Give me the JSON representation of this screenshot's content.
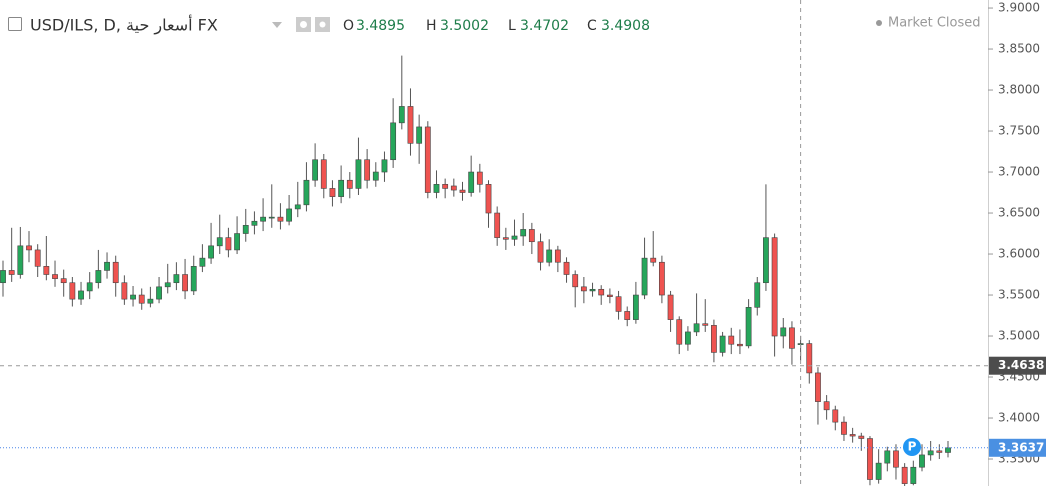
{
  "chart_data": {
    "type": "candlestick",
    "symbol": "USD/ILS, D, أسعار حية FX",
    "ohlc_labels": [
      "O",
      "H",
      "L",
      "C"
    ],
    "status": "Market Closed",
    "marker_label": "P",
    "up_color": "#26a65b",
    "down_color": "#ef5350",
    "grid": false,
    "crosshair_price": 3.4638,
    "ylim": [
      3.3171,
      3.9098
    ],
    "yticks": [
      {
        "value": 3.35,
        "label": "3.3500"
      },
      {
        "value": 3.4,
        "label": "3.4000"
      },
      {
        "value": 3.45,
        "label": "3.4500"
      },
      {
        "value": 3.5,
        "label": "3.5000"
      },
      {
        "value": 3.55,
        "label": "3.5500"
      },
      {
        "value": 3.6,
        "label": "3.6000"
      },
      {
        "value": 3.65,
        "label": "3.6500"
      },
      {
        "value": 3.7,
        "label": "3.7000"
      },
      {
        "value": 3.75,
        "label": "3.7500"
      },
      {
        "value": 3.8,
        "label": "3.8000"
      },
      {
        "value": 3.85,
        "label": "3.8500"
      },
      {
        "value": 3.9,
        "label": "3.9000"
      }
    ],
    "candles": [
      [
        3.565,
        3.592,
        3.548,
        3.58
      ],
      [
        3.58,
        3.632,
        3.566,
        3.575
      ],
      [
        3.575,
        3.633,
        3.57,
        3.61
      ],
      [
        3.61,
        3.628,
        3.59,
        3.605
      ],
      [
        3.605,
        3.612,
        3.572,
        3.585
      ],
      [
        3.585,
        3.622,
        3.568,
        3.575
      ],
      [
        3.575,
        3.592,
        3.56,
        3.57
      ],
      [
        3.57,
        3.581,
        3.548,
        3.565
      ],
      [
        3.565,
        3.572,
        3.536,
        3.545
      ],
      [
        3.545,
        3.566,
        3.538,
        3.555
      ],
      [
        3.555,
        3.578,
        3.545,
        3.565
      ],
      [
        3.565,
        3.605,
        3.558,
        3.58
      ],
      [
        3.58,
        3.602,
        3.57,
        3.59
      ],
      [
        3.59,
        3.598,
        3.548,
        3.565
      ],
      [
        3.565,
        3.574,
        3.538,
        3.545
      ],
      [
        3.545,
        3.561,
        3.536,
        3.55
      ],
      [
        3.55,
        3.558,
        3.532,
        3.54
      ],
      [
        3.54,
        3.56,
        3.535,
        3.545
      ],
      [
        3.545,
        3.572,
        3.54,
        3.56
      ],
      [
        3.56,
        3.588,
        3.552,
        3.565
      ],
      [
        3.565,
        3.59,
        3.556,
        3.575
      ],
      [
        3.575,
        3.594,
        3.545,
        3.555
      ],
      [
        3.555,
        3.598,
        3.55,
        3.585
      ],
      [
        3.585,
        3.612,
        3.578,
        3.595
      ],
      [
        3.595,
        3.638,
        3.588,
        3.61
      ],
      [
        3.61,
        3.648,
        3.6,
        3.62
      ],
      [
        3.62,
        3.632,
        3.596,
        3.605
      ],
      [
        3.605,
        3.646,
        3.6,
        3.625
      ],
      [
        3.625,
        3.655,
        3.615,
        3.635
      ],
      [
        3.635,
        3.652,
        3.624,
        3.64
      ],
      [
        3.64,
        3.668,
        3.628,
        3.645
      ],
      [
        3.645,
        3.685,
        3.632,
        3.645
      ],
      [
        3.645,
        3.662,
        3.63,
        3.64
      ],
      [
        3.64,
        3.672,
        3.635,
        3.655
      ],
      [
        3.655,
        3.688,
        3.645,
        3.66
      ],
      [
        3.66,
        3.712,
        3.652,
        3.69
      ],
      [
        3.69,
        3.735,
        3.682,
        3.715
      ],
      [
        3.715,
        3.722,
        3.668,
        3.68
      ],
      [
        3.68,
        3.69,
        3.658,
        3.67
      ],
      [
        3.67,
        3.708,
        3.662,
        3.69
      ],
      [
        3.69,
        3.7,
        3.668,
        3.68
      ],
      [
        3.68,
        3.742,
        3.672,
        3.715
      ],
      [
        3.715,
        3.728,
        3.68,
        3.69
      ],
      [
        3.69,
        3.712,
        3.682,
        3.7
      ],
      [
        3.7,
        3.725,
        3.688,
        3.715
      ],
      [
        3.715,
        3.79,
        3.705,
        3.76
      ],
      [
        3.76,
        3.842,
        3.752,
        3.78
      ],
      [
        3.78,
        3.802,
        3.72,
        3.735
      ],
      [
        3.735,
        3.77,
        3.71,
        3.755
      ],
      [
        3.755,
        3.762,
        3.668,
        3.675
      ],
      [
        3.675,
        3.702,
        3.668,
        3.685
      ],
      [
        3.685,
        3.692,
        3.668,
        3.68
      ],
      [
        3.683,
        3.692,
        3.67,
        3.678
      ],
      [
        3.678,
        3.688,
        3.665,
        3.675
      ],
      [
        3.675,
        3.72,
        3.67,
        3.7
      ],
      [
        3.7,
        3.71,
        3.675,
        3.685
      ],
      [
        3.685,
        3.69,
        3.632,
        3.65
      ],
      [
        3.65,
        3.658,
        3.61,
        3.62
      ],
      [
        3.62,
        3.632,
        3.605,
        3.618
      ],
      [
        3.618,
        3.642,
        3.61,
        3.622
      ],
      [
        3.622,
        3.65,
        3.61,
        3.63
      ],
      [
        3.63,
        3.638,
        3.6,
        3.615
      ],
      [
        3.615,
        3.625,
        3.58,
        3.59
      ],
      [
        3.59,
        3.618,
        3.585,
        3.605
      ],
      [
        3.605,
        3.61,
        3.578,
        3.59
      ],
      [
        3.59,
        3.596,
        3.565,
        3.575
      ],
      [
        3.575,
        3.58,
        3.535,
        3.56
      ],
      [
        3.56,
        3.572,
        3.54,
        3.555
      ],
      [
        3.555,
        3.565,
        3.548,
        3.557
      ],
      [
        3.557,
        3.562,
        3.538,
        3.55
      ],
      [
        3.55,
        3.558,
        3.54,
        3.548
      ],
      [
        3.548,
        3.555,
        3.52,
        3.53
      ],
      [
        3.53,
        3.536,
        3.512,
        3.52
      ],
      [
        3.52,
        3.566,
        3.515,
        3.55
      ],
      [
        3.55,
        3.62,
        3.545,
        3.595
      ],
      [
        3.595,
        3.628,
        3.585,
        3.59
      ],
      [
        3.59,
        3.598,
        3.54,
        3.55
      ],
      [
        3.55,
        3.555,
        3.505,
        3.52
      ],
      [
        3.52,
        3.524,
        3.478,
        3.49
      ],
      [
        3.49,
        3.512,
        3.482,
        3.505
      ],
      [
        3.505,
        3.552,
        3.5,
        3.515
      ],
      [
        3.515,
        3.545,
        3.505,
        3.513
      ],
      [
        3.513,
        3.52,
        3.468,
        3.48
      ],
      [
        3.48,
        3.505,
        3.475,
        3.5
      ],
      [
        3.5,
        3.51,
        3.478,
        3.49
      ],
      [
        3.49,
        3.508,
        3.478,
        3.488
      ],
      [
        3.488,
        3.545,
        3.485,
        3.535
      ],
      [
        3.535,
        3.572,
        3.525,
        3.565
      ],
      [
        3.565,
        3.685,
        3.555,
        3.62
      ],
      [
        3.62,
        3.625,
        3.475,
        3.5
      ],
      [
        3.5,
        3.522,
        3.485,
        3.51
      ],
      [
        3.51,
        3.518,
        3.465,
        3.485
      ],
      [
        3.4895,
        3.5002,
        3.4702,
        3.4908
      ],
      [
        3.4908,
        3.495,
        3.442,
        3.455
      ],
      [
        3.455,
        3.462,
        3.392,
        3.42
      ],
      [
        3.42,
        3.428,
        3.398,
        3.41
      ],
      [
        3.41,
        3.415,
        3.385,
        3.395
      ],
      [
        3.395,
        3.402,
        3.372,
        3.38
      ],
      [
        3.38,
        3.388,
        3.37,
        3.378
      ],
      [
        3.378,
        3.382,
        3.36,
        3.375
      ],
      [
        3.375,
        3.378,
        3.318,
        3.325
      ],
      [
        3.325,
        3.362,
        3.32,
        3.345
      ],
      [
        3.345,
        3.365,
        3.335,
        3.36
      ],
      [
        3.36,
        3.368,
        3.325,
        3.34
      ],
      [
        3.34,
        3.345,
        3.316,
        3.32
      ],
      [
        3.32,
        3.348,
        3.318,
        3.34
      ],
      [
        3.34,
        3.368,
        3.335,
        3.355
      ],
      [
        3.355,
        3.372,
        3.348,
        3.36
      ],
      [
        3.36,
        3.368,
        3.35,
        3.358
      ],
      [
        3.358,
        3.372,
        3.352,
        3.3637
      ]
    ]
  }
}
